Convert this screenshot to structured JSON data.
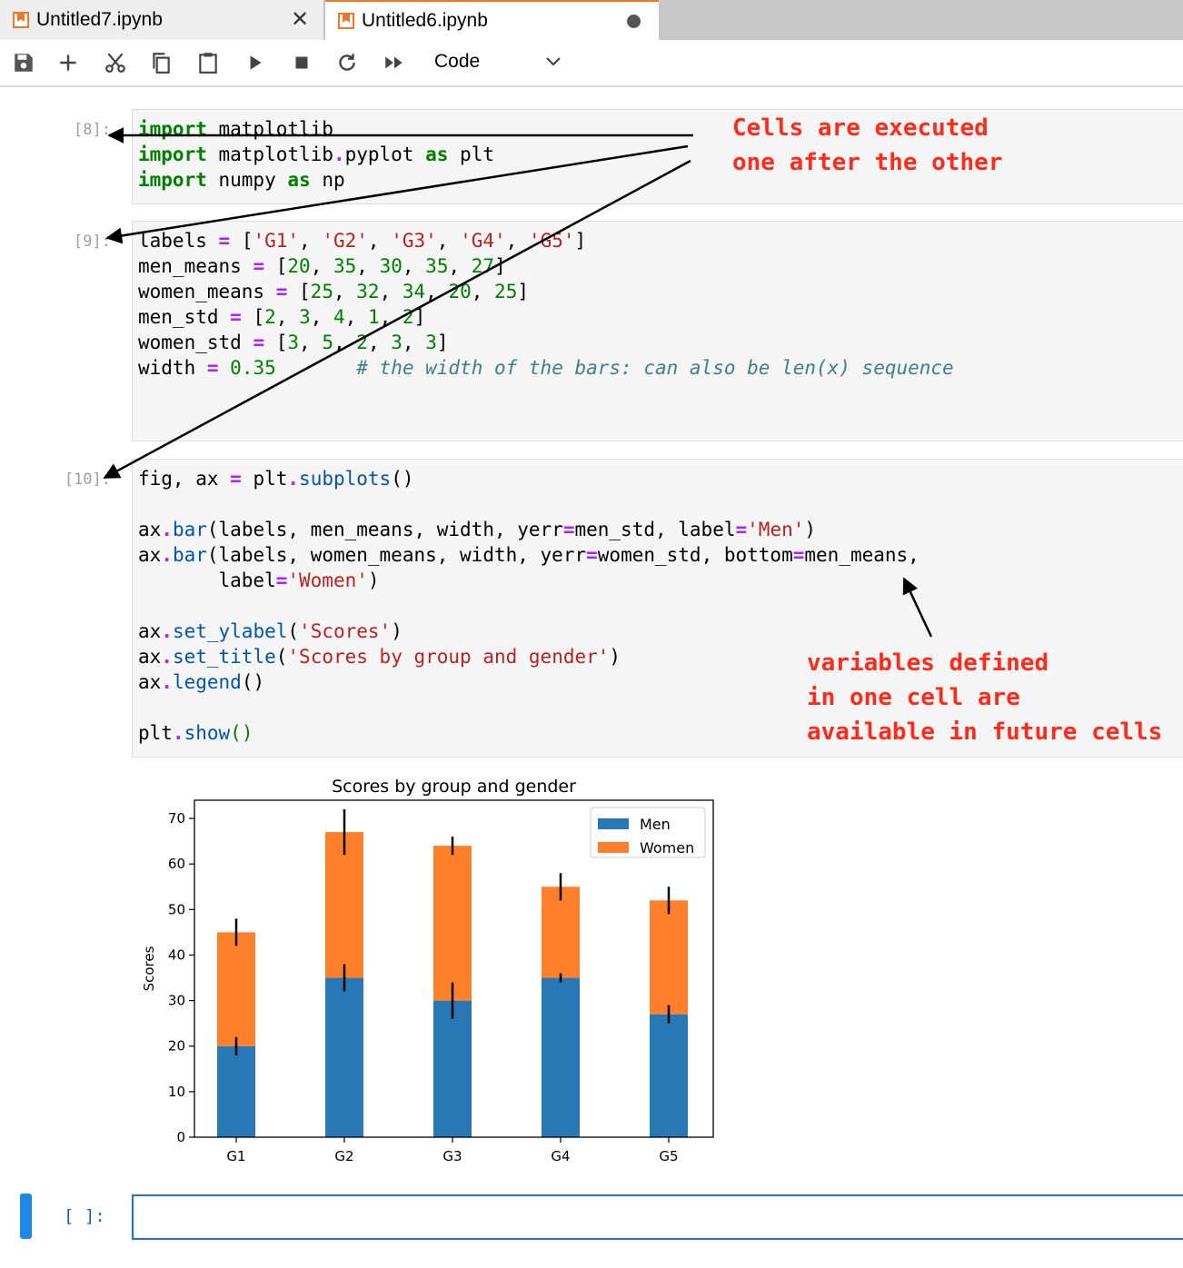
{
  "tabs": [
    {
      "title": "Untitled7.ipynb",
      "close": "✕"
    },
    {
      "title": "Untitled6.ipynb"
    }
  ],
  "toolbar": {
    "cell_type": "Code"
  },
  "cells": [
    {
      "prompt": "[8]:"
    },
    {
      "prompt": "[9]:"
    },
    {
      "prompt": "[10]:"
    }
  ],
  "empty_cell": {
    "prompt": "[ ]:"
  },
  "annotations": {
    "cells_executed_line1": "Cells are executed",
    "cells_executed_line2": "one after the other",
    "variables_line1": "variables defined",
    "variables_line2": "in one cell are",
    "variables_line3": "available in future cells"
  },
  "colors": {
    "men": "#2878b5",
    "women": "#ff7f2a",
    "annotation": "#ff2a1a",
    "accent": "#1976d2"
  },
  "chart_data": {
    "type": "bar",
    "stacked": true,
    "title": "Scores by group and gender",
    "ylabel": "Scores",
    "xlabel": "",
    "categories": [
      "G1",
      "G2",
      "G3",
      "G4",
      "G5"
    ],
    "series": [
      {
        "name": "Men",
        "values": [
          20,
          35,
          30,
          35,
          27
        ],
        "error": [
          2,
          3,
          4,
          1,
          2
        ]
      },
      {
        "name": "Women",
        "values": [
          25,
          32,
          34,
          20,
          25
        ],
        "error": [
          3,
          5,
          2,
          3,
          3
        ]
      }
    ],
    "ylim": [
      0,
      74
    ],
    "yticks": [
      0,
      10,
      20,
      30,
      40,
      50,
      60,
      70
    ],
    "legend": "top-right",
    "grid": false
  }
}
